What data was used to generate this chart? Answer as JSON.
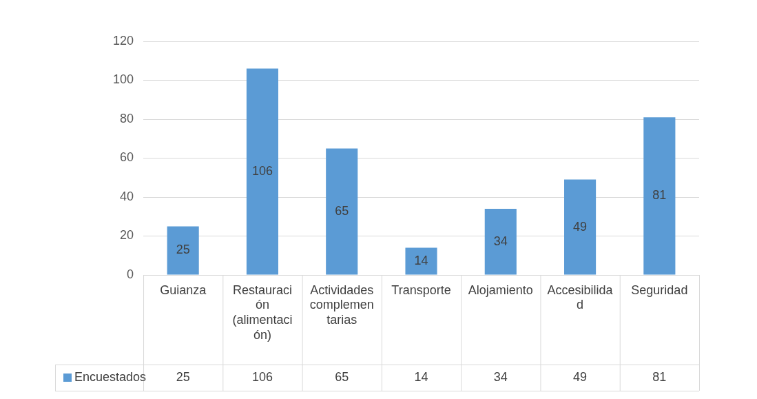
{
  "chart_data": {
    "type": "bar",
    "categories": [
      "Guianza",
      "Restauración (alimentación)",
      "Actividades complementarias",
      "Transporte",
      "Alojamiento",
      "Accesibilidad",
      "Seguridad"
    ],
    "series": [
      {
        "name": "Encuestados",
        "color": "#5b9bd5",
        "values": [
          25,
          106,
          65,
          14,
          34,
          49,
          81
        ]
      }
    ],
    "ylim": [
      0,
      120
    ],
    "yticks": [
      0,
      20,
      40,
      60,
      80,
      100,
      120
    ],
    "grid": "y",
    "legend": "bottom",
    "data_labels": true,
    "annotations": [
      "25",
      "106",
      "65",
      "14",
      "34",
      "49",
      "81"
    ]
  }
}
